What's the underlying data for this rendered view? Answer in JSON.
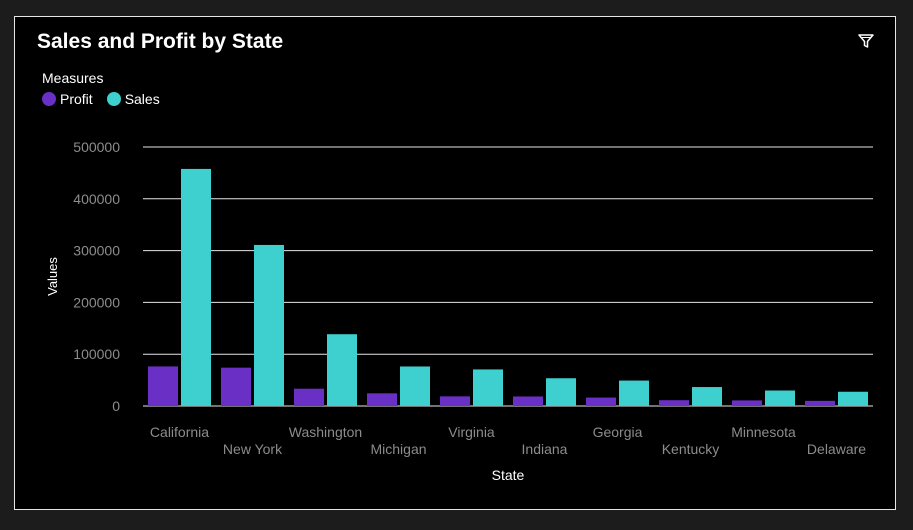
{
  "colors": {
    "profit": "#6a2fc4",
    "sales": "#3ecfcf",
    "text_muted": "#8c8c8c",
    "grid": "#e6e6e6"
  },
  "header": {
    "title": "Sales and Profit by State",
    "filter_icon": "filter-icon"
  },
  "legend": {
    "title": "Measures",
    "items": [
      "Profit",
      "Sales"
    ]
  },
  "chart_data": {
    "type": "bar",
    "title": "Sales and Profit by State",
    "xlabel": "State",
    "ylabel": "Values",
    "ylim": [
      0,
      500000
    ],
    "yticks": [
      0,
      100000,
      200000,
      300000,
      400000,
      500000
    ],
    "categories": [
      "California",
      "New York",
      "Washington",
      "Michigan",
      "Virginia",
      "Indiana",
      "Georgia",
      "Kentucky",
      "Minnesota",
      "Delaware"
    ],
    "series": [
      {
        "name": "Profit",
        "values": [
          76400,
          74000,
          33400,
          24500,
          18600,
          18400,
          16300,
          11200,
          10800,
          9980
        ]
      },
      {
        "name": "Sales",
        "values": [
          457700,
          310900,
          138600,
          76300,
          70600,
          53600,
          49100,
          36600,
          29900,
          27500
        ]
      }
    ],
    "legend_position": "top-left",
    "grid": true
  }
}
